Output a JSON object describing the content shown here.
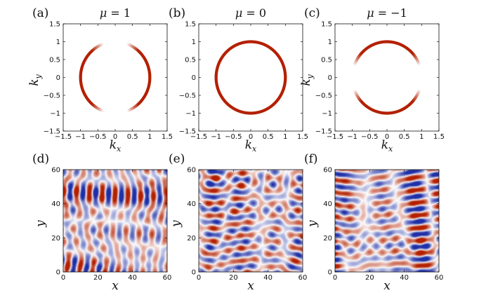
{
  "chart_data": [
    {
      "panel": "(a)",
      "type": "scatter",
      "title": "μ = 1",
      "title_symbol": "μ",
      "title_value": "1",
      "xlabel": "k_x",
      "ylabel": "k_y",
      "xlim": [
        -1.5,
        1.5
      ],
      "ylim": [
        -1.5,
        1.5
      ],
      "xticks": [
        "−1.5",
        "−1",
        "−0.5",
        "0",
        "0.5",
        "1",
        "1.5"
      ],
      "yticks": [
        "−1.5",
        "−1",
        "−0.5",
        "0",
        "0.5",
        "1",
        "1.5"
      ],
      "ring_radius": 1.0,
      "gap_center_degrees": [
        90,
        270
      ],
      "gap_half_width_degrees": 20,
      "fade_degrees": 22,
      "color": "#b32000"
    },
    {
      "panel": "(b)",
      "type": "scatter",
      "title": "μ = 0",
      "title_symbol": "μ",
      "title_value": "0",
      "xlabel": "k_x",
      "ylabel": "",
      "xlim": [
        -1.5,
        1.5
      ],
      "ylim": [
        -1.5,
        1.5
      ],
      "xticks": [
        "−1.5",
        "−1",
        "−0.5",
        "0",
        "0.5",
        "1",
        "1.5"
      ],
      "yticks": [
        "−1.5",
        "−1",
        "−0.5",
        "0",
        "0.5",
        "1",
        "1.5"
      ],
      "ring_radius": 1.0,
      "gap_center_degrees": [],
      "gap_half_width_degrees": 0,
      "fade_degrees": 0,
      "color": "#b32000"
    },
    {
      "panel": "(c)",
      "type": "scatter",
      "title": "μ = −1",
      "title_symbol": "μ",
      "title_value": "−1",
      "xlabel": "k_x",
      "ylabel": "k_y",
      "xlim": [
        -1.5,
        1.5
      ],
      "ylim": [
        -1.5,
        1.5
      ],
      "xticks": [
        "−1.5",
        "−1",
        "−0.5",
        "0",
        "0.5",
        "1",
        "1.5"
      ],
      "yticks": [
        "−1.5",
        "−1",
        "−0.5",
        "0",
        "0.5",
        "1",
        "1.5"
      ],
      "ring_radius": 1.0,
      "gap_center_degrees": [
        0,
        180
      ],
      "gap_half_width_degrees": 20,
      "fade_degrees": 22,
      "color": "#b32000"
    },
    {
      "panel": "(d)",
      "type": "heatmap",
      "xlabel": "x",
      "ylabel": "y",
      "xlim": [
        0,
        60
      ],
      "ylim": [
        0,
        60
      ],
      "xticks": [
        "0",
        "20",
        "40",
        "60"
      ],
      "yticks": [
        "0",
        "20",
        "40",
        "60"
      ],
      "pattern": "vertical stripes",
      "colors": [
        "#1f2fa6",
        "#ffffff",
        "#b32000"
      ]
    },
    {
      "panel": "(e)",
      "type": "heatmap",
      "xlabel": "x",
      "ylabel": "y",
      "xlim": [
        0,
        60
      ],
      "ylim": [
        0,
        60
      ],
      "xticks": [
        "0",
        "20",
        "40",
        "60"
      ],
      "yticks": [
        "0",
        "20",
        "40",
        "60"
      ],
      "pattern": "cellular spots",
      "colors": [
        "#1f2fa6",
        "#ffffff",
        "#b32000"
      ]
    },
    {
      "panel": "(f)",
      "type": "heatmap",
      "xlabel": "x",
      "ylabel": "y",
      "xlim": [
        0,
        60
      ],
      "ylim": [
        0,
        60
      ],
      "xticks": [
        "0",
        "20",
        "40",
        "60"
      ],
      "yticks": [
        "0",
        "20",
        "40",
        "60"
      ],
      "pattern": "horizontal stripes",
      "colors": [
        "#1f2fa6",
        "#ffffff",
        "#b32000"
      ]
    }
  ]
}
